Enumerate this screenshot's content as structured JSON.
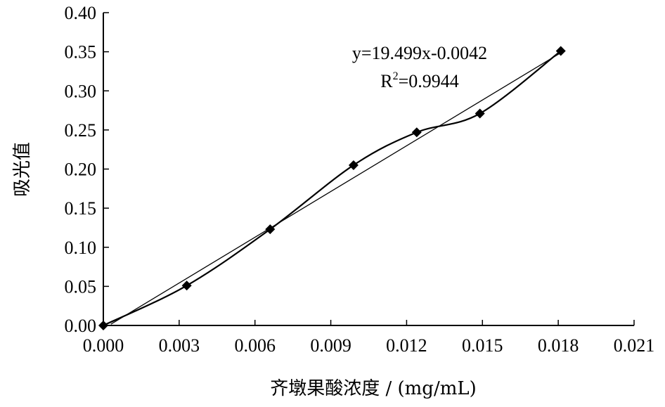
{
  "chart_data": {
    "type": "scatter",
    "xlabel": "齐墩果酸浓度 / (mg/mL)",
    "ylabel": "吸光值",
    "xlim": [
      0,
      0.021
    ],
    "ylim": [
      0,
      0.4
    ],
    "x_ticks": [
      "0.000",
      "0.003",
      "0.006",
      "0.009",
      "0.012",
      "0.015",
      "0.018",
      "0.021"
    ],
    "y_ticks": [
      "0.00",
      "0.05",
      "0.10",
      "0.15",
      "0.20",
      "0.25",
      "0.30",
      "0.35",
      "0.40"
    ],
    "series": [
      {
        "marker": "diamond",
        "connected": "smooth",
        "x": [
          0.0,
          0.0033,
          0.0066,
          0.0099,
          0.0124,
          0.0149,
          0.0181
        ],
        "y": [
          0.0,
          0.051,
          0.123,
          0.205,
          0.247,
          0.271,
          0.351
        ]
      }
    ],
    "trendline": {
      "type": "linear",
      "slope": 19.499,
      "intercept": -0.0042,
      "equation": "y=19.499x-0.0042",
      "r2_prefix": "R",
      "r2_sup": "2",
      "r2_value": "=0.9944"
    },
    "grid": false,
    "legend": "none"
  }
}
